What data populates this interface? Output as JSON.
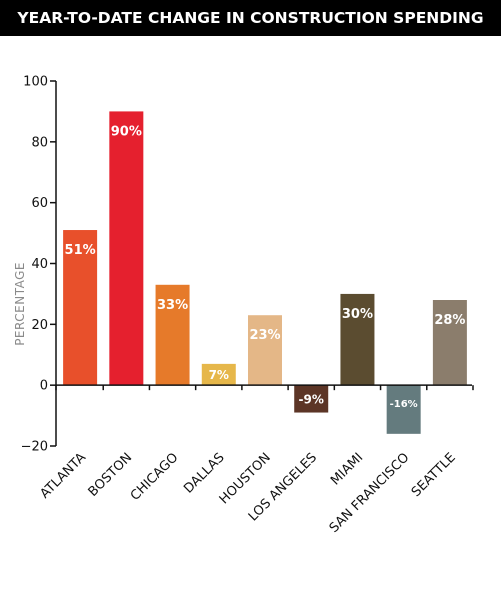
{
  "title": "YEAR-TO-DATE CHANGE IN CONSTRUCTION SPENDING",
  "chart_data": {
    "type": "bar",
    "title": "YEAR-TO-DATE CHANGE IN CONSTRUCTION SPENDING",
    "xlabel": "",
    "ylabel": "PERCENTAGE",
    "ylim": [
      -20,
      100
    ],
    "yticks": [
      -20,
      0,
      20,
      40,
      60,
      80,
      100
    ],
    "grid": false,
    "categories": [
      "ATLANTA",
      "BOSTON",
      "CHICAGO",
      "DALLAS",
      "HOUSTON",
      "LOS ANGELES",
      "MIAMI",
      "SAN FRANCISCO",
      "SEATTLE"
    ],
    "values": [
      51,
      90,
      33,
      7,
      23,
      -9,
      30,
      -16,
      28
    ],
    "data_labels": [
      "51%",
      "90%",
      "33%",
      "7%",
      "23%",
      "-9%",
      "30%",
      "-16%",
      "28%"
    ],
    "colors": [
      "#e8502b",
      "#e5202e",
      "#e67a2a",
      "#e6b74a",
      "#e4b787",
      "#5c3526",
      "#5b4c30",
      "#647b7e",
      "#8b7d6c"
    ]
  }
}
